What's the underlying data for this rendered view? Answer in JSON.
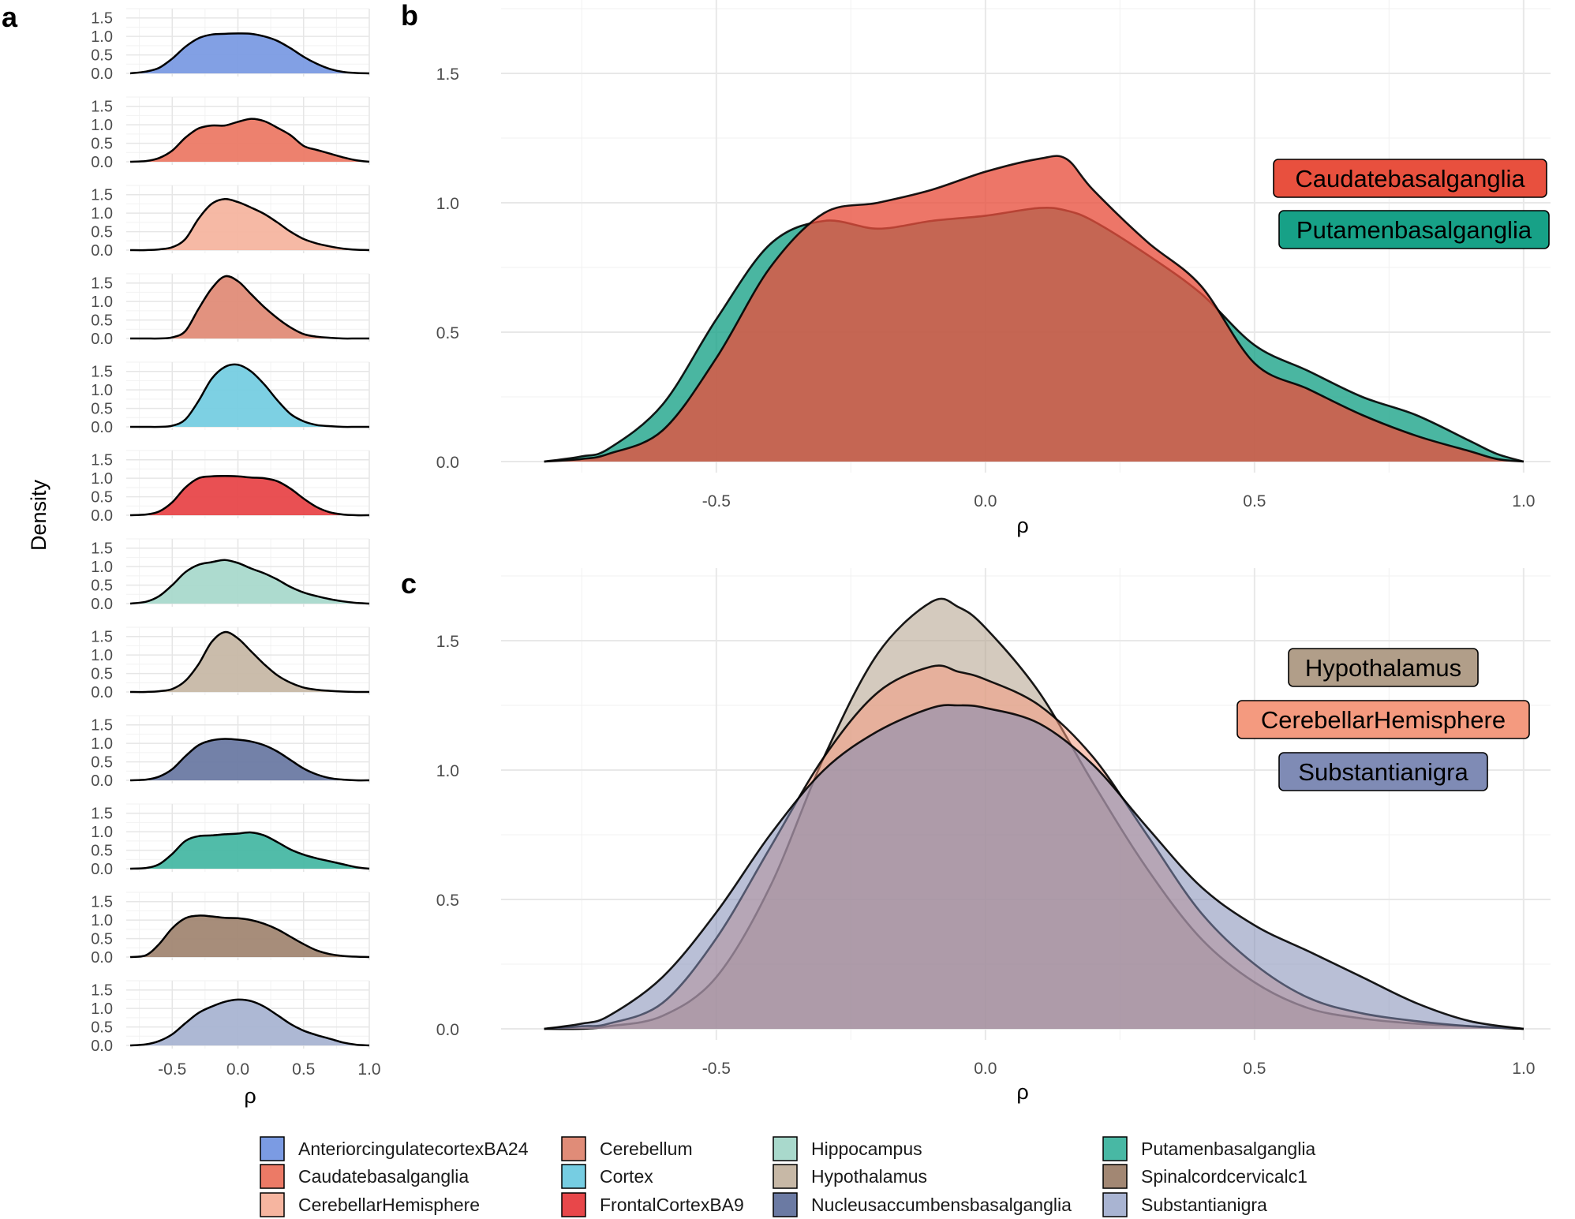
{
  "colors": {
    "AnteriorcingulatecortexBA24": "#7b9be3",
    "Caudatebasalganglia": "#ec7a66",
    "CerebellarHemisphere": "#f6b5a0",
    "Cerebellum": "#e08c78",
    "Cortex": "#76cde2",
    "FrontalCortexBA9": "#e8474a",
    "Hippocampus": "#a9d9cc",
    "Hypothalamus": "#c7b8a6",
    "Nucleusaccumbensbasalganglia": "#6b7aa3",
    "Putamenbasalganglia": "#48b8a4",
    "Spinalcordcervicalc1": "#a28773",
    "Substantianigra": "#a9b4d2",
    "tag_Caudatebasalganglia": "#e8503e",
    "tag_Putamenbasalganglia": "#17a187",
    "tag_Hypothalamus": "#b19e89",
    "tag_CerebellarHemisphere": "#f49a7f",
    "tag_Substantianigra": "#7f8bb5"
  },
  "chart_data": [
    {
      "panel": "a",
      "type": "area",
      "title": "",
      "xlabel": "ρ",
      "ylabel": "Density",
      "xlim": [
        -0.85,
        1.0
      ],
      "ylim": [
        0,
        1.75
      ],
      "xticks": [
        "-0.5",
        "0.0",
        "0.5",
        "1.0"
      ],
      "yticks": [
        "0.0",
        "0.5",
        "1.0",
        "1.5"
      ],
      "x": [
        -0.82,
        -0.7,
        -0.6,
        -0.5,
        -0.4,
        -0.3,
        -0.2,
        -0.1,
        0.0,
        0.1,
        0.2,
        0.3,
        0.4,
        0.5,
        0.6,
        0.7,
        0.8,
        0.9,
        1.0
      ],
      "series": [
        {
          "name": "AnteriorcingulatecortexBA24",
          "values": [
            0.0,
            0.05,
            0.15,
            0.4,
            0.72,
            0.95,
            1.05,
            1.07,
            1.08,
            1.07,
            1.0,
            0.88,
            0.68,
            0.45,
            0.26,
            0.12,
            0.04,
            0.01,
            0.0
          ]
        },
        {
          "name": "Caudatebasalganglia",
          "values": [
            0.0,
            0.02,
            0.1,
            0.3,
            0.65,
            0.9,
            0.98,
            0.98,
            1.08,
            1.16,
            1.1,
            0.92,
            0.72,
            0.43,
            0.32,
            0.22,
            0.12,
            0.04,
            0.0
          ]
        },
        {
          "name": "CerebellarHemisphere",
          "values": [
            0.0,
            0.0,
            0.02,
            0.08,
            0.3,
            0.85,
            1.25,
            1.38,
            1.3,
            1.15,
            0.98,
            0.75,
            0.5,
            0.3,
            0.18,
            0.1,
            0.04,
            0.01,
            0.0
          ]
        },
        {
          "name": "Cerebellum",
          "values": [
            0.0,
            0.0,
            0.0,
            0.03,
            0.2,
            0.8,
            1.35,
            1.68,
            1.55,
            1.2,
            0.85,
            0.55,
            0.3,
            0.12,
            0.05,
            0.02,
            0.0,
            0.0,
            0.0
          ]
        },
        {
          "name": "Cortex",
          "values": [
            0.0,
            0.0,
            0.0,
            0.03,
            0.2,
            0.7,
            1.3,
            1.62,
            1.68,
            1.5,
            1.15,
            0.72,
            0.35,
            0.15,
            0.05,
            0.02,
            0.0,
            0.0,
            0.0
          ]
        },
        {
          "name": "FrontalCortexBA9",
          "values": [
            0.0,
            0.02,
            0.1,
            0.35,
            0.75,
            1.0,
            1.05,
            1.06,
            1.05,
            1.02,
            1.0,
            0.92,
            0.72,
            0.45,
            0.22,
            0.08,
            0.02,
            0.0,
            0.0
          ]
        },
        {
          "name": "Hippocampus",
          "values": [
            0.0,
            0.05,
            0.2,
            0.5,
            0.85,
            1.05,
            1.12,
            1.18,
            1.1,
            0.95,
            0.82,
            0.65,
            0.45,
            0.3,
            0.2,
            0.12,
            0.06,
            0.02,
            0.0
          ]
        },
        {
          "name": "Hypothalamus",
          "values": [
            0.0,
            0.0,
            0.02,
            0.08,
            0.3,
            0.75,
            1.35,
            1.62,
            1.45,
            1.1,
            0.75,
            0.45,
            0.25,
            0.12,
            0.06,
            0.03,
            0.01,
            0.0,
            0.0
          ]
        },
        {
          "name": "Nucleusaccumbensbasalganglia",
          "values": [
            0.0,
            0.02,
            0.1,
            0.3,
            0.65,
            0.95,
            1.08,
            1.12,
            1.1,
            1.05,
            0.95,
            0.78,
            0.55,
            0.32,
            0.16,
            0.06,
            0.02,
            0.0,
            0.0
          ]
        },
        {
          "name": "Putamenbasalganglia",
          "values": [
            0.0,
            0.02,
            0.12,
            0.4,
            0.75,
            0.88,
            0.9,
            0.93,
            0.95,
            0.98,
            0.9,
            0.72,
            0.52,
            0.38,
            0.28,
            0.2,
            0.12,
            0.04,
            0.0
          ]
        },
        {
          "name": "Spinalcordcervicalc1",
          "values": [
            0.0,
            0.05,
            0.35,
            0.78,
            1.05,
            1.12,
            1.1,
            1.06,
            1.05,
            1.0,
            0.9,
            0.75,
            0.55,
            0.35,
            0.18,
            0.08,
            0.03,
            0.01,
            0.0
          ]
        },
        {
          "name": "Substantianigra",
          "values": [
            0.0,
            0.03,
            0.12,
            0.3,
            0.6,
            0.88,
            1.05,
            1.18,
            1.24,
            1.2,
            1.05,
            0.82,
            0.58,
            0.4,
            0.28,
            0.18,
            0.08,
            0.02,
            0.0
          ]
        }
      ]
    },
    {
      "panel": "b",
      "type": "area",
      "title": "",
      "xlabel": "ρ",
      "ylabel": "",
      "xlim": [
        -0.9,
        1.05
      ],
      "ylim": [
        -0.03,
        1.8
      ],
      "xticks": [
        "-0.5",
        "0.0",
        "0.5",
        "1.0"
      ],
      "yticks": [
        "0.0",
        "0.5",
        "1.0",
        "1.5"
      ],
      "x": [
        -0.82,
        -0.75,
        -0.7,
        -0.6,
        -0.5,
        -0.4,
        -0.3,
        -0.2,
        -0.1,
        0.0,
        0.1,
        0.15,
        0.2,
        0.3,
        0.4,
        0.5,
        0.6,
        0.7,
        0.8,
        0.9,
        0.95,
        1.0
      ],
      "series": [
        {
          "name": "Putamenbasalganglia",
          "tag": "Putamenbasalganglia",
          "values": [
            0.0,
            0.02,
            0.05,
            0.22,
            0.55,
            0.84,
            0.93,
            0.9,
            0.93,
            0.95,
            0.98,
            0.97,
            0.93,
            0.8,
            0.65,
            0.45,
            0.35,
            0.25,
            0.18,
            0.08,
            0.03,
            0.0
          ]
        },
        {
          "name": "Caudatebasalganglia",
          "tag": "Caudatebasalganglia",
          "values": [
            0.0,
            0.01,
            0.03,
            0.12,
            0.4,
            0.75,
            0.96,
            1.0,
            1.05,
            1.12,
            1.17,
            1.17,
            1.05,
            0.85,
            0.68,
            0.38,
            0.28,
            0.18,
            0.1,
            0.04,
            0.01,
            0.0
          ]
        }
      ]
    },
    {
      "panel": "c",
      "type": "area",
      "title": "",
      "xlabel": "ρ",
      "ylabel": "",
      "xlim": [
        -0.9,
        1.05
      ],
      "ylim": [
        -0.03,
        1.8
      ],
      "xticks": [
        "-0.5",
        "0.0",
        "0.5",
        "1.0"
      ],
      "yticks": [
        "0.0",
        "0.5",
        "1.0",
        "1.5"
      ],
      "x": [
        -0.82,
        -0.75,
        -0.7,
        -0.6,
        -0.5,
        -0.4,
        -0.3,
        -0.2,
        -0.1,
        -0.05,
        0.0,
        0.1,
        0.2,
        0.3,
        0.4,
        0.5,
        0.6,
        0.7,
        0.8,
        0.9,
        1.0
      ],
      "series": [
        {
          "name": "Hypothalamus",
          "tag": "Hypothalamus",
          "values": [
            0.0,
            0.0,
            0.01,
            0.05,
            0.2,
            0.55,
            1.05,
            1.45,
            1.65,
            1.63,
            1.55,
            1.3,
            0.95,
            0.62,
            0.35,
            0.18,
            0.08,
            0.04,
            0.02,
            0.01,
            0.0
          ]
        },
        {
          "name": "CerebellarHemisphere",
          "tag": "CerebellarHemisphere",
          "values": [
            0.0,
            0.01,
            0.02,
            0.1,
            0.35,
            0.7,
            1.05,
            1.3,
            1.4,
            1.38,
            1.35,
            1.25,
            1.05,
            0.75,
            0.45,
            0.25,
            0.12,
            0.06,
            0.03,
            0.01,
            0.0
          ]
        },
        {
          "name": "Substantianigra",
          "tag": "Substantianigra",
          "values": [
            0.0,
            0.02,
            0.05,
            0.2,
            0.45,
            0.75,
            1.0,
            1.15,
            1.24,
            1.25,
            1.24,
            1.18,
            1.02,
            0.78,
            0.55,
            0.4,
            0.3,
            0.2,
            0.1,
            0.03,
            0.0
          ]
        }
      ]
    }
  ],
  "panels": {
    "a": "a",
    "b": "b",
    "c": "c"
  },
  "legend": {
    "entries": [
      "AnteriorcingulatecortexBA24",
      "Caudatebasalganglia",
      "CerebellarHemisphere",
      "Cerebellum",
      "Cortex",
      "FrontalCortexBA9",
      "Hippocampus",
      "Hypothalamus",
      "Nucleusaccumbensbasalganglia",
      "Putamenbasalganglia",
      "Spinalcordcervicalc1",
      "Substantianigra"
    ]
  }
}
